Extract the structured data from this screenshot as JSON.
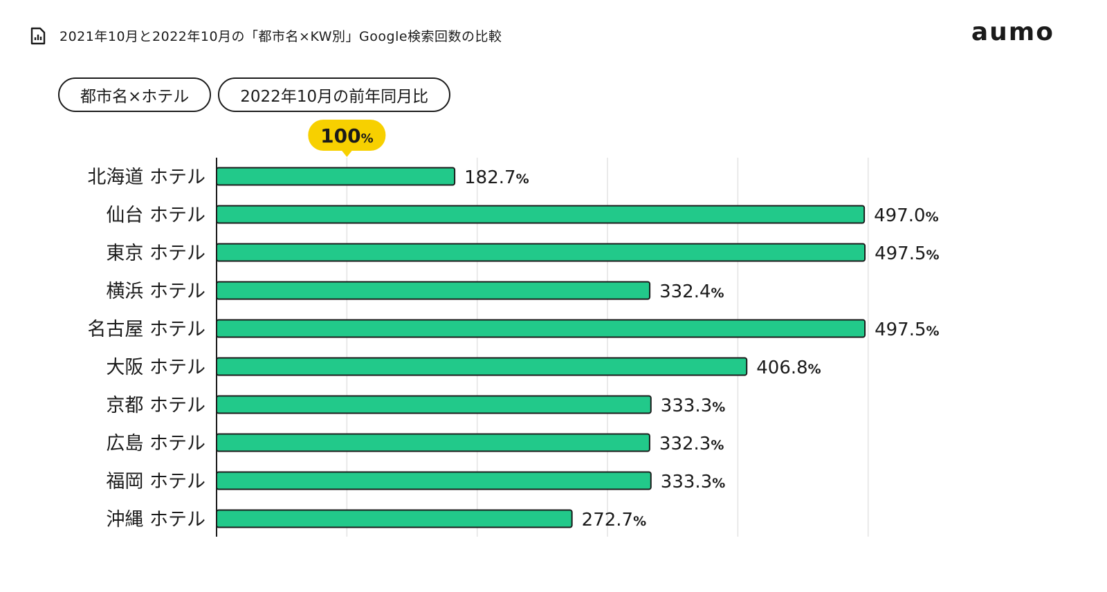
{
  "header": {
    "title": "2021年10月と2022年10月の「都市名×KW別」Google検索回数の比較",
    "icon": "bar-chart-document-icon"
  },
  "brand": {
    "logo_text": "aumo"
  },
  "filters": [
    {
      "label": "都市名×ホテル"
    },
    {
      "label": "2022年10月の前年同月比"
    }
  ],
  "colors": {
    "bar": "#22c98a",
    "bar_border": "#1a1a1a",
    "badge": "#f7d000",
    "grid": "#e3e3e3"
  },
  "chart_data": {
    "type": "bar",
    "orientation": "horizontal",
    "categories": [
      "北海道 ホテル",
      "仙台 ホテル",
      "東京 ホテル",
      "横浜 ホテル",
      "名古屋 ホテル",
      "大阪 ホテル",
      "京都 ホテル",
      "広島 ホテル",
      "福岡 ホテル",
      "沖縄 ホテル"
    ],
    "values": [
      182.7,
      497.0,
      497.5,
      332.4,
      497.5,
      406.8,
      333.3,
      332.3,
      333.3,
      272.7
    ],
    "value_labels": [
      "182.7",
      "497.0",
      "497.5",
      "332.4",
      "497.5",
      "406.8",
      "333.3",
      "332.3",
      "333.3",
      "272.7"
    ],
    "unit": "%",
    "xlim": [
      0,
      500
    ],
    "gridlines": [
      100,
      200,
      300,
      400,
      500
    ],
    "reference": {
      "value": 100,
      "label": "100",
      "unit": "%"
    },
    "grid": true,
    "title": "",
    "xlabel": "",
    "ylabel": ""
  }
}
